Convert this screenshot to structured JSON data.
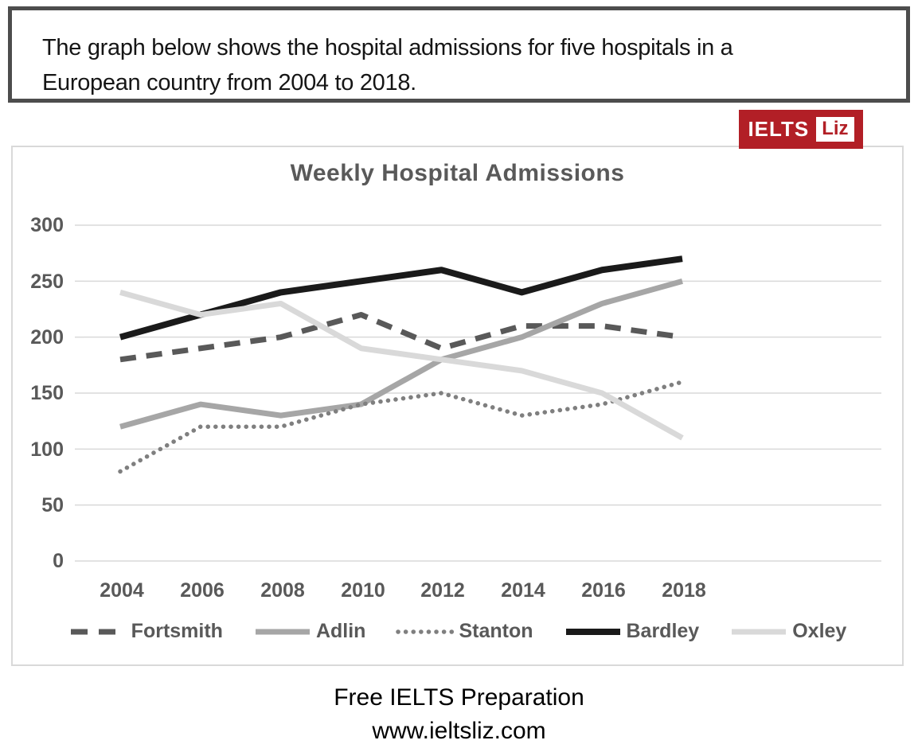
{
  "instruction": {
    "line1": "The graph below shows the hospital admissions for five hospitals in a",
    "line2": "European country from 2004 to 2018."
  },
  "logo": {
    "brand": "IELTS",
    "accent": "Liz",
    "background_color": "#b21f26",
    "text_color": "#ffffff"
  },
  "chart_data": {
    "type": "line",
    "title": "Weekly Hospital Admissions",
    "categories": [
      "2004",
      "2006",
      "2008",
      "2010",
      "2012",
      "2014",
      "2016",
      "2018"
    ],
    "yticks": [
      "300",
      "250",
      "200",
      "150",
      "100",
      "50",
      "0"
    ],
    "ylim": [
      0,
      300
    ],
    "xlabel": "",
    "ylabel": "",
    "grid": "horizontal",
    "gridline_color": "#d9d9d9",
    "legend_position": "bottom",
    "series": [
      {
        "name": "Fortsmith",
        "style": "dashed",
        "color": "#595959",
        "values": [
          180,
          190,
          200,
          220,
          190,
          210,
          210,
          200
        ]
      },
      {
        "name": "Adlin",
        "style": "solid",
        "color": "#a6a6a6",
        "values": [
          120,
          140,
          130,
          140,
          180,
          200,
          230,
          250
        ]
      },
      {
        "name": "Stanton",
        "style": "dotted",
        "color": "#7f7f7f",
        "values": [
          80,
          120,
          120,
          140,
          150,
          130,
          140,
          160
        ]
      },
      {
        "name": "Bardley",
        "style": "solid",
        "color": "#1a1a1a",
        "values": [
          200,
          220,
          240,
          250,
          260,
          240,
          260,
          270
        ]
      },
      {
        "name": "Oxley",
        "style": "solid",
        "color": "#d9d9d9",
        "values": [
          240,
          220,
          230,
          190,
          180,
          170,
          150,
          110
        ]
      }
    ]
  },
  "footer": {
    "line1": "Free IELTS Preparation",
    "line2": "www.ieltsliz.com"
  }
}
